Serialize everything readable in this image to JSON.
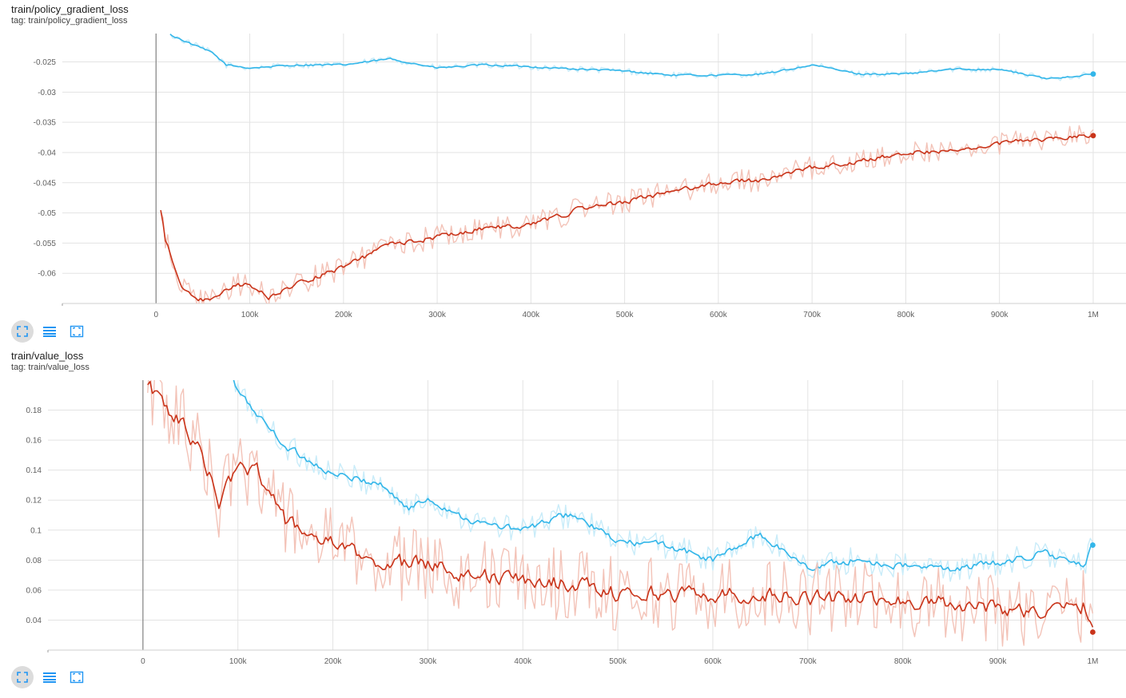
{
  "colors": {
    "red": "#c9341a",
    "red_raw": "#f3c3b8",
    "blue": "#33b6e9",
    "blue_raw": "#c9ecf9",
    "grid": "#e3e3e3",
    "zero_axis": "#8a8a8a",
    "accent": "#2196f3"
  },
  "toolbar": {
    "icons": [
      "fit-domain-icon",
      "toggle-y-log-icon",
      "toggle-selection-icon"
    ]
  },
  "chart_data": [
    {
      "type": "line",
      "title": "train/policy_gradient_loss",
      "tag": "tag: train/policy_gradient_loss",
      "x_tick_labels": [
        "0",
        "100k",
        "200k",
        "300k",
        "400k",
        "500k",
        "600k",
        "700k",
        "800k",
        "900k",
        "1M"
      ],
      "x_ticks": [
        0,
        100000,
        200000,
        300000,
        400000,
        500000,
        600000,
        700000,
        800000,
        900000,
        1000000
      ],
      "xlim": [
        -100000,
        1035000
      ],
      "y_tick_labels": [
        "-0.025",
        "-0.03",
        "-0.035",
        "-0.04",
        "-0.045",
        "-0.05",
        "-0.055",
        "-0.06"
      ],
      "y_ticks": [
        -0.025,
        -0.03,
        -0.035,
        -0.04,
        -0.045,
        -0.05,
        -0.055,
        -0.06
      ],
      "ylim": [
        -0.065,
        -0.0203
      ],
      "grid": true,
      "series": [
        {
          "color_key": "blue",
          "x": [
            15000,
            30000,
            60000,
            75000,
            100000,
            150000,
            200000,
            250000,
            300000,
            350000,
            400000,
            450000,
            500000,
            550000,
            600000,
            650000,
            700000,
            750000,
            800000,
            850000,
            900000,
            950000,
            1000000
          ],
          "y": [
            -0.0205,
            -0.0215,
            -0.0235,
            -0.0255,
            -0.026,
            -0.0255,
            -0.0255,
            -0.0245,
            -0.026,
            -0.0255,
            -0.0258,
            -0.0262,
            -0.0265,
            -0.0272,
            -0.0272,
            -0.027,
            -0.0255,
            -0.027,
            -0.027,
            -0.0262,
            -0.0262,
            -0.0278,
            -0.027
          ]
        },
        {
          "color_key": "red",
          "x": [
            5000,
            10000,
            20000,
            30000,
            40000,
            60000,
            80000,
            100000,
            120000,
            150000,
            200000,
            250000,
            300000,
            350000,
            400000,
            450000,
            500000,
            550000,
            600000,
            650000,
            700000,
            750000,
            800000,
            850000,
            900000,
            950000,
            1000000
          ],
          "y": [
            -0.0495,
            -0.0545,
            -0.059,
            -0.0628,
            -0.0643,
            -0.0645,
            -0.0622,
            -0.0618,
            -0.064,
            -0.0618,
            -0.059,
            -0.0552,
            -0.054,
            -0.0525,
            -0.052,
            -0.0495,
            -0.0482,
            -0.0465,
            -0.045,
            -0.0445,
            -0.0425,
            -0.0415,
            -0.04,
            -0.0398,
            -0.0385,
            -0.0378,
            -0.0372
          ]
        }
      ]
    },
    {
      "type": "line",
      "title": "train/value_loss",
      "tag": "tag: train/value_loss",
      "x_tick_labels": [
        "0",
        "100k",
        "200k",
        "300k",
        "400k",
        "500k",
        "600k",
        "700k",
        "800k",
        "900k",
        "1M"
      ],
      "x_ticks": [
        0,
        100000,
        200000,
        300000,
        400000,
        500000,
        600000,
        700000,
        800000,
        900000,
        1000000
      ],
      "xlim": [
        -100000,
        1035000
      ],
      "y_tick_labels": [
        "0.18",
        "0.16",
        "0.14",
        "0.12",
        "0.1",
        "0.08",
        "0.06",
        "0.04"
      ],
      "y_ticks": [
        0.18,
        0.16,
        0.14,
        0.12,
        0.1,
        0.08,
        0.06,
        0.04
      ],
      "ylim": [
        0.02,
        0.2
      ],
      "grid": true,
      "series": [
        {
          "color_key": "blue",
          "x": [
            95000,
            100000,
            150000,
            200000,
            250000,
            280000,
            300000,
            350000,
            400000,
            450000,
            500000,
            550000,
            600000,
            650000,
            700000,
            750000,
            800000,
            850000,
            900000,
            950000,
            990000,
            1000000
          ],
          "y": [
            0.2,
            0.192,
            0.156,
            0.137,
            0.131,
            0.114,
            0.121,
            0.105,
            0.1,
            0.111,
            0.092,
            0.09,
            0.08,
            0.097,
            0.075,
            0.08,
            0.076,
            0.074,
            0.078,
            0.085,
            0.075,
            0.09
          ]
        },
        {
          "color_key": "red",
          "x": [
            5000,
            20000,
            40000,
            60000,
            80000,
            100000,
            120000,
            150000,
            200000,
            250000,
            300000,
            350000,
            400000,
            450000,
            500000,
            550000,
            600000,
            650000,
            700000,
            750000,
            800000,
            850000,
            900000,
            950000,
            990000,
            1000000
          ],
          "y": [
            0.198,
            0.185,
            0.172,
            0.152,
            0.12,
            0.14,
            0.142,
            0.105,
            0.09,
            0.078,
            0.078,
            0.07,
            0.066,
            0.065,
            0.058,
            0.058,
            0.057,
            0.057,
            0.055,
            0.054,
            0.053,
            0.052,
            0.048,
            0.045,
            0.05,
            0.032
          ]
        }
      ]
    }
  ]
}
